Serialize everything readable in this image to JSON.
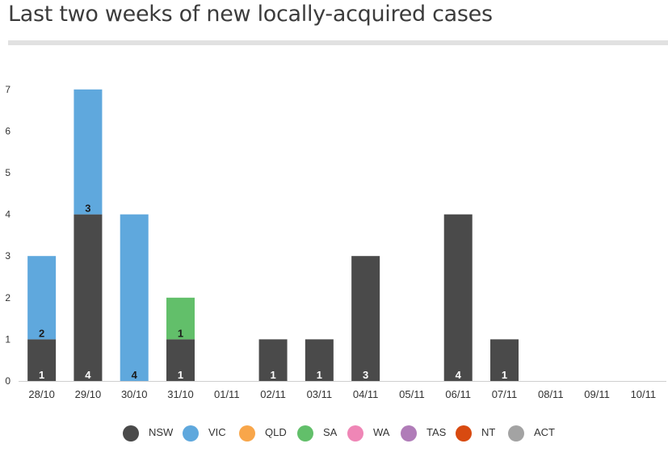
{
  "title": "Last two weeks of new locally-acquired cases",
  "chart_data": {
    "type": "bar",
    "stacked": true,
    "categories": [
      "28/10",
      "29/10",
      "30/10",
      "31/10",
      "01/11",
      "02/11",
      "03/11",
      "04/11",
      "05/11",
      "06/11",
      "07/11",
      "08/11",
      "09/11",
      "10/11"
    ],
    "ylim": [
      0,
      7
    ],
    "yticks": [
      0,
      1,
      2,
      3,
      4,
      5,
      6,
      7
    ],
    "grid": false,
    "legend_position": "bottom",
    "series": [
      {
        "name": "NSW",
        "color": "#4a4a4a",
        "values": [
          1,
          4,
          0,
          1,
          0,
          1,
          1,
          3,
          0,
          4,
          1,
          0,
          0,
          0
        ]
      },
      {
        "name": "VIC",
        "color": "#5fa8dd",
        "values": [
          2,
          3,
          4,
          0,
          0,
          0,
          0,
          0,
          0,
          0,
          0,
          0,
          0,
          0
        ]
      },
      {
        "name": "QLD",
        "color": "#f8a64a",
        "values": [
          0,
          0,
          0,
          0,
          0,
          0,
          0,
          0,
          0,
          0,
          0,
          0,
          0,
          0
        ]
      },
      {
        "name": "SA",
        "color": "#62bf6a",
        "values": [
          0,
          0,
          0,
          1,
          0,
          0,
          0,
          0,
          0,
          0,
          0,
          0,
          0,
          0
        ]
      },
      {
        "name": "WA",
        "color": "#ef86b6",
        "values": [
          0,
          0,
          0,
          0,
          0,
          0,
          0,
          0,
          0,
          0,
          0,
          0,
          0,
          0
        ]
      },
      {
        "name": "TAS",
        "color": "#b07cb8",
        "values": [
          0,
          0,
          0,
          0,
          0,
          0,
          0,
          0,
          0,
          0,
          0,
          0,
          0,
          0
        ]
      },
      {
        "name": "NT",
        "color": "#d84a10",
        "values": [
          0,
          0,
          0,
          0,
          0,
          0,
          0,
          0,
          0,
          0,
          0,
          0,
          0,
          0
        ]
      },
      {
        "name": "ACT",
        "color": "#a3a3a3",
        "values": [
          0,
          0,
          0,
          0,
          0,
          0,
          0,
          0,
          0,
          0,
          0,
          0,
          0,
          0
        ]
      }
    ]
  }
}
